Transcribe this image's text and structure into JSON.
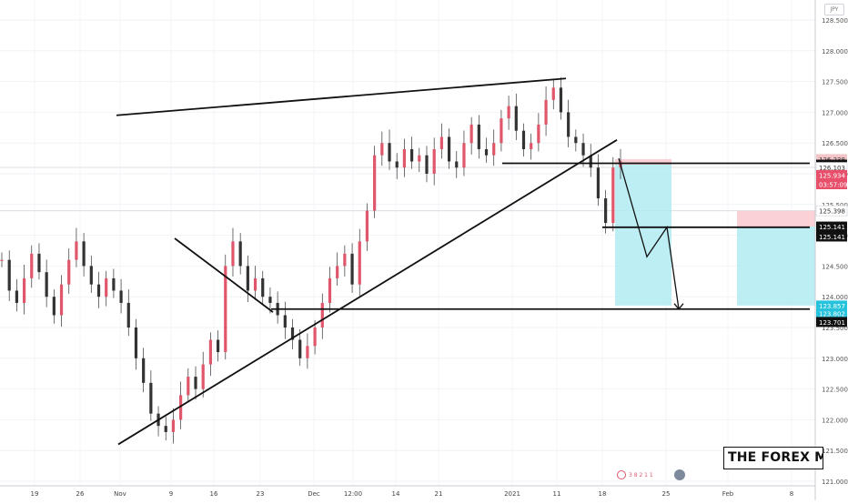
{
  "currency_badge": "JPY",
  "price_axis": {
    "ticks": [
      "128.500",
      "128.000",
      "127.500",
      "127.000",
      "126.500",
      "126.000",
      "125.500",
      "125.000",
      "124.500",
      "124.000",
      "123.500",
      "123.000",
      "122.500",
      "122.000",
      "121.500",
      "121.000"
    ],
    "markers": [
      {
        "label": "126.238",
        "bg": "#f3c5c8",
        "fg": "#333333"
      },
      {
        "label": "126.148",
        "bg": "#111111",
        "fg": "#ffffff"
      },
      {
        "label": "126.103",
        "bg": "#ffffff",
        "fg": "#333333"
      },
      {
        "label": "125.934",
        "bg": "#e84f6a",
        "fg": "#ffffff"
      },
      {
        "label": "03:57:09",
        "bg": "#e84f6a",
        "fg": "#ffffff"
      },
      {
        "label": "125.398",
        "bg": "#ffffff",
        "fg": "#333333"
      },
      {
        "label": "125.141",
        "bg": "#111111",
        "fg": "#ffffff"
      },
      {
        "label": "125.141",
        "bg": "#111111",
        "fg": "#ffffff"
      },
      {
        "label": "123.857",
        "bg": "#27c3dc",
        "fg": "#ffffff"
      },
      {
        "label": "123.802",
        "bg": "#27c3dc",
        "fg": "#ffffff"
      },
      {
        "label": "123.701",
        "bg": "#111111",
        "fg": "#ffffff"
      }
    ]
  },
  "time_axis": {
    "labels": [
      "19",
      "26",
      "Nov",
      "9",
      "16",
      "23",
      "Dec",
      "12:00",
      "14",
      "21",
      "2021",
      "11",
      "18",
      "25",
      "Feb",
      "8"
    ]
  },
  "watermark": "THE FOREX MC",
  "event_icons_label": "3 8 2 1 1",
  "colors": {
    "bull": "#26a69a",
    "bear": "#e0566b",
    "candle_body": "#e0566b",
    "profit_zone": "#b2ebf2",
    "loss_zone": "#f8c9cf",
    "line": "#111111"
  },
  "chart_data": {
    "type": "candlestick",
    "symbol_quote": "JPY",
    "y_range": [
      121.0,
      128.7
    ],
    "x_labels": [
      "19",
      "26",
      "Nov",
      "9",
      "16",
      "23",
      "Dec",
      "12:00",
      "14",
      "21",
      "2021",
      "11",
      "18",
      "25",
      "Feb",
      "8"
    ],
    "last_price": 125.934,
    "countdown": "03:57:09",
    "series_close": [
      124.6,
      124.1,
      123.9,
      124.3,
      124.7,
      124.4,
      124.0,
      123.7,
      124.2,
      124.6,
      124.9,
      124.5,
      124.2,
      124.0,
      124.3,
      124.1,
      123.9,
      123.5,
      123.0,
      122.6,
      122.1,
      121.9,
      121.8,
      122.0,
      122.4,
      122.7,
      122.5,
      122.9,
      123.3,
      123.1,
      124.5,
      124.9,
      124.5,
      124.1,
      124.3,
      124.0,
      123.9,
      123.7,
      123.5,
      123.3,
      123.0,
      123.2,
      123.5,
      123.9,
      124.3,
      124.5,
      124.7,
      124.2,
      124.9,
      125.4,
      126.3,
      126.5,
      126.2,
      126.1,
      126.4,
      126.2,
      126.3,
      126.0,
      126.4,
      126.6,
      126.2,
      126.1,
      126.5,
      126.8,
      126.4,
      126.3,
      126.5,
      126.9,
      127.1,
      126.7,
      126.4,
      126.5,
      126.8,
      127.2,
      127.4,
      127.0,
      126.6,
      126.5,
      126.3,
      126.1,
      125.6,
      125.2,
      126.1,
      126.2
    ],
    "trendlines": [
      {
        "name": "upper-wedge",
        "from": [
          128,
          126.95
        ],
        "to": [
          622,
          127.55
        ]
      },
      {
        "name": "lower-wedge",
        "from": [
          130,
          121.6
        ],
        "to": [
          678,
          126.55
        ]
      },
      {
        "name": "falling-line",
        "from": [
          192,
          124.95
        ],
        "to": [
          300,
          123.75
        ]
      },
      {
        "name": "support",
        "from": [
          298,
          123.8
        ],
        "to": [
          890,
          123.8
        ]
      },
      {
        "name": "resistance-top",
        "from": [
          552,
          126.17
        ],
        "to": [
          890,
          126.17
        ]
      },
      {
        "name": "resistance-mid",
        "from": [
          662,
          125.13
        ],
        "to": [
          890,
          125.13
        ]
      }
    ]
  }
}
